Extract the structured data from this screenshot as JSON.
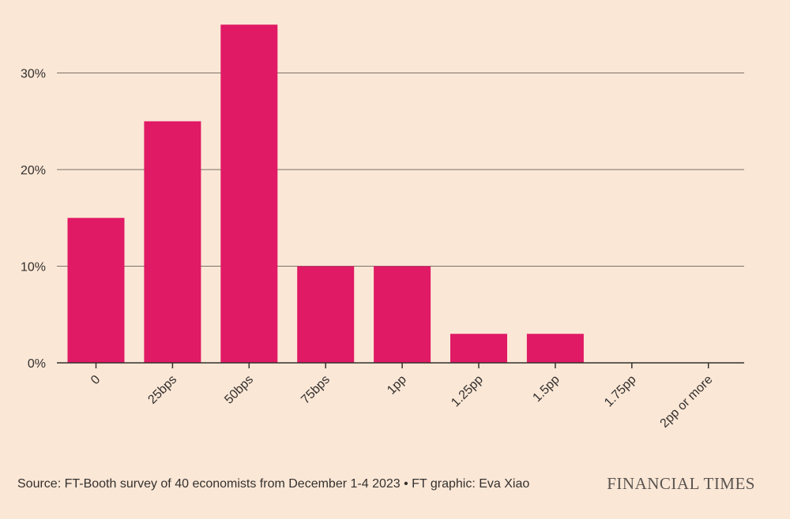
{
  "chart_data": {
    "type": "bar",
    "categories": [
      "0",
      "25bps",
      "50bps",
      "75bps",
      "1pp",
      "1.25pp",
      "1.5pp",
      "1.75pp",
      "2pp or more"
    ],
    "values": [
      15,
      25,
      35,
      10,
      10,
      3,
      3,
      0,
      0
    ],
    "ylim": [
      0,
      36
    ],
    "yticks": [
      0,
      10,
      20,
      30
    ],
    "ytick_labels": [
      "0%",
      "10%",
      "20%",
      "30%"
    ],
    "title": "",
    "xlabel": "",
    "ylabel": "",
    "grid": true,
    "colors": {
      "bar": "#e01a65",
      "grid": "#7a7067",
      "background": "#fbe7d6",
      "text": "#33302e"
    }
  },
  "footer": {
    "source": "Source: FT-Booth survey of 40 economists from December 1-4 2023 • FT graphic: Eva Xiao",
    "brand": "FINANCIAL TIMES"
  }
}
